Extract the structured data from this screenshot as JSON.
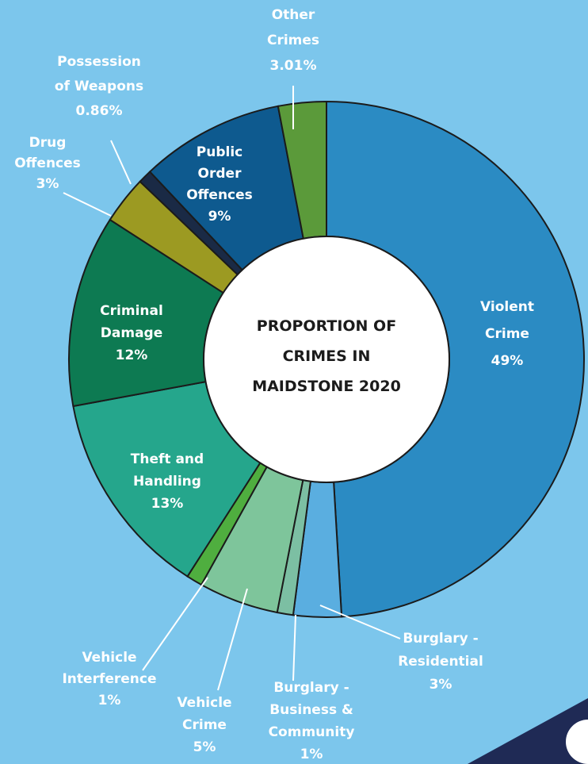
{
  "chart_data": {
    "type": "pie",
    "title_lines": [
      "PROPORTION OF",
      "CRIMES IN",
      "MAIDSTONE 2020"
    ],
    "slices": [
      {
        "lines": [
          "Violent",
          "Crime",
          "49%"
        ],
        "value": 49,
        "color": "#2b8bc3"
      },
      {
        "lines": [
          "Burglary -",
          "Residential",
          "3%"
        ],
        "value": 3,
        "color": "#5aaee0"
      },
      {
        "lines": [
          "Burglary -",
          "Business &",
          "Community",
          "1%"
        ],
        "value": 1,
        "color": "#7cbfa3"
      },
      {
        "lines": [
          "Vehicle",
          "Crime",
          "5%"
        ],
        "value": 5,
        "color": "#7ec59b"
      },
      {
        "lines": [
          "Vehicle",
          "Interference",
          "1%"
        ],
        "value": 1,
        "color": "#4fae3f"
      },
      {
        "lines": [
          "Theft and",
          "Handling",
          "13%"
        ],
        "value": 13,
        "color": "#25a68c"
      },
      {
        "lines": [
          "Criminal",
          "Damage",
          "12%"
        ],
        "value": 12,
        "color": "#0d7a52"
      },
      {
        "lines": [
          "Drug",
          "Offences",
          "3%"
        ],
        "value": 3,
        "color": "#9c9a22"
      },
      {
        "lines": [
          "Possession",
          "of Weapons",
          "0.86%"
        ],
        "value": 0.86,
        "color": "#1a2a45"
      },
      {
        "lines": [
          "Public",
          "Order",
          "Offences",
          "9%"
        ],
        "value": 9,
        "color": "#0e5a8f"
      },
      {
        "lines": [
          "Other",
          "Crimes",
          "3.01%"
        ],
        "value": 3.01,
        "color": "#5b9a3a"
      }
    ]
  }
}
